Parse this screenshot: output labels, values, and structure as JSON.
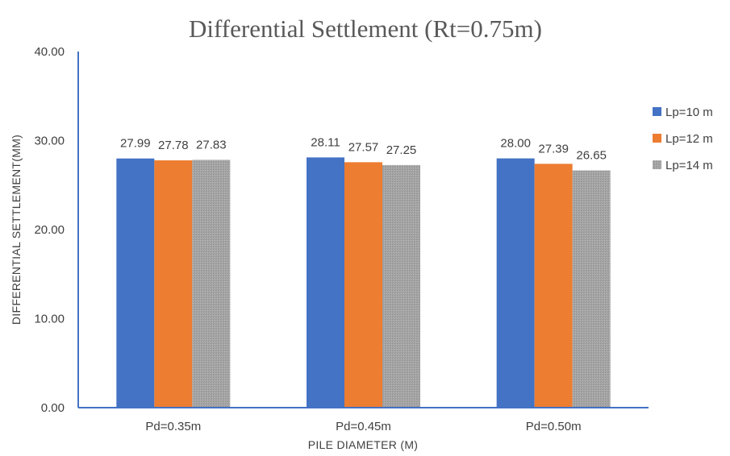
{
  "chart_data": {
    "type": "bar",
    "title": "Differential Settlement (Rt=0.75m)",
    "xlabel": "PILE DIAMETER (M)",
    "ylabel": "DIFFERENTIAL SETTLEMENT(MM)",
    "categories": [
      "Pd=0.35m",
      "Pd=0.45m",
      "Pd=0.50m"
    ],
    "ylim": [
      0,
      40
    ],
    "yticks": [
      "0.00",
      "10.00",
      "20.00",
      "30.00",
      "40.00"
    ],
    "grid": false,
    "legend_position": "right",
    "series": [
      {
        "name": "Lp=10 m",
        "color": "#4472C4",
        "values": [
          27.99,
          28.11,
          28.0
        ],
        "labels": [
          "27.99",
          "28.11",
          "28.00"
        ]
      },
      {
        "name": "Lp=12 m",
        "color": "#ED7D31",
        "values": [
          27.78,
          27.57,
          27.39
        ],
        "labels": [
          "27.78",
          "27.57",
          "27.39"
        ]
      },
      {
        "name": "Lp=14 m",
        "color": "#A5A5A5",
        "values": [
          27.83,
          27.25,
          26.65
        ],
        "labels": [
          "27.83",
          "27.25",
          "26.65"
        ]
      }
    ]
  }
}
